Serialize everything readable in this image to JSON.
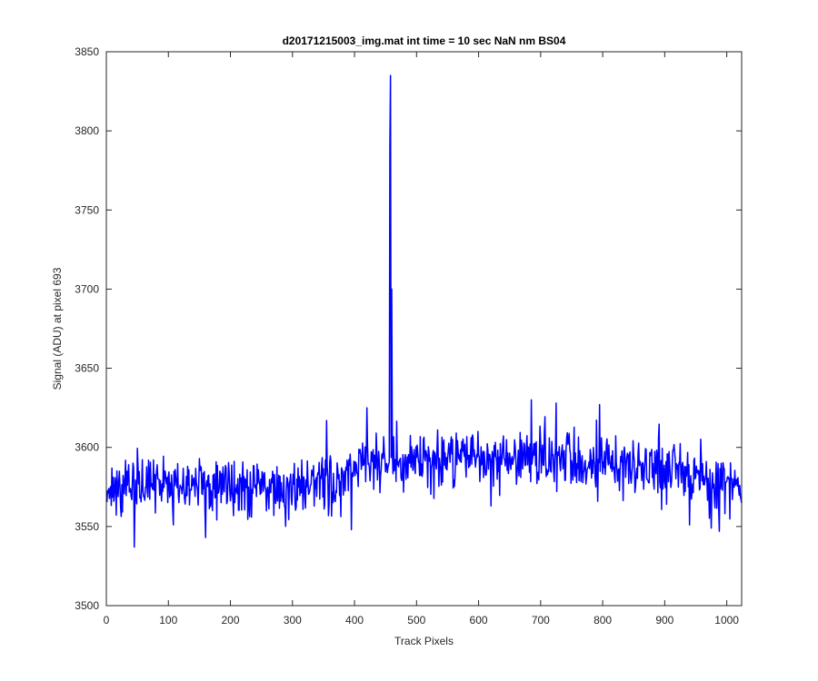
{
  "chart_data": {
    "type": "line",
    "title": "d20171215003_img.mat int time = 10 sec  NaN nm BS04",
    "xlabel": "Track Pixels",
    "ylabel": "Signal (ADU) at pixel 693",
    "xlim": [
      0,
      1024
    ],
    "ylim": [
      3500,
      3850
    ],
    "xticks": [
      0,
      100,
      200,
      300,
      400,
      500,
      600,
      700,
      800,
      900,
      1000
    ],
    "yticks": [
      3500,
      3550,
      3600,
      3650,
      3700,
      3750,
      3800,
      3850
    ],
    "grid": false,
    "line_color": "#0000ff",
    "series": [
      {
        "x_start": 1,
        "x_end": 1024,
        "n_points": 1024,
        "baseline": [
          [
            0,
            3573
          ],
          [
            100,
            3575
          ],
          [
            200,
            3576
          ],
          [
            300,
            3574
          ],
          [
            350,
            3578
          ],
          [
            380,
            3582
          ],
          [
            420,
            3590
          ],
          [
            500,
            3592
          ],
          [
            600,
            3593
          ],
          [
            700,
            3594
          ],
          [
            800,
            3592
          ],
          [
            900,
            3585
          ],
          [
            1000,
            3578
          ],
          [
            1024,
            3575
          ]
        ],
        "noise_amplitude": 9,
        "spikes": [
          [
            458,
            3835
          ],
          [
            457,
            3790
          ],
          [
            460,
            3700
          ],
          [
            45,
            3537
          ],
          [
            160,
            3543
          ],
          [
            395,
            3548
          ],
          [
            620,
            3563
          ],
          [
            940,
            3551
          ],
          [
            975,
            3549
          ],
          [
            988,
            3547
          ],
          [
            420,
            3625
          ],
          [
            355,
            3617
          ],
          [
            685,
            3630
          ],
          [
            725,
            3628
          ],
          [
            795,
            3627
          ]
        ]
      }
    ]
  }
}
